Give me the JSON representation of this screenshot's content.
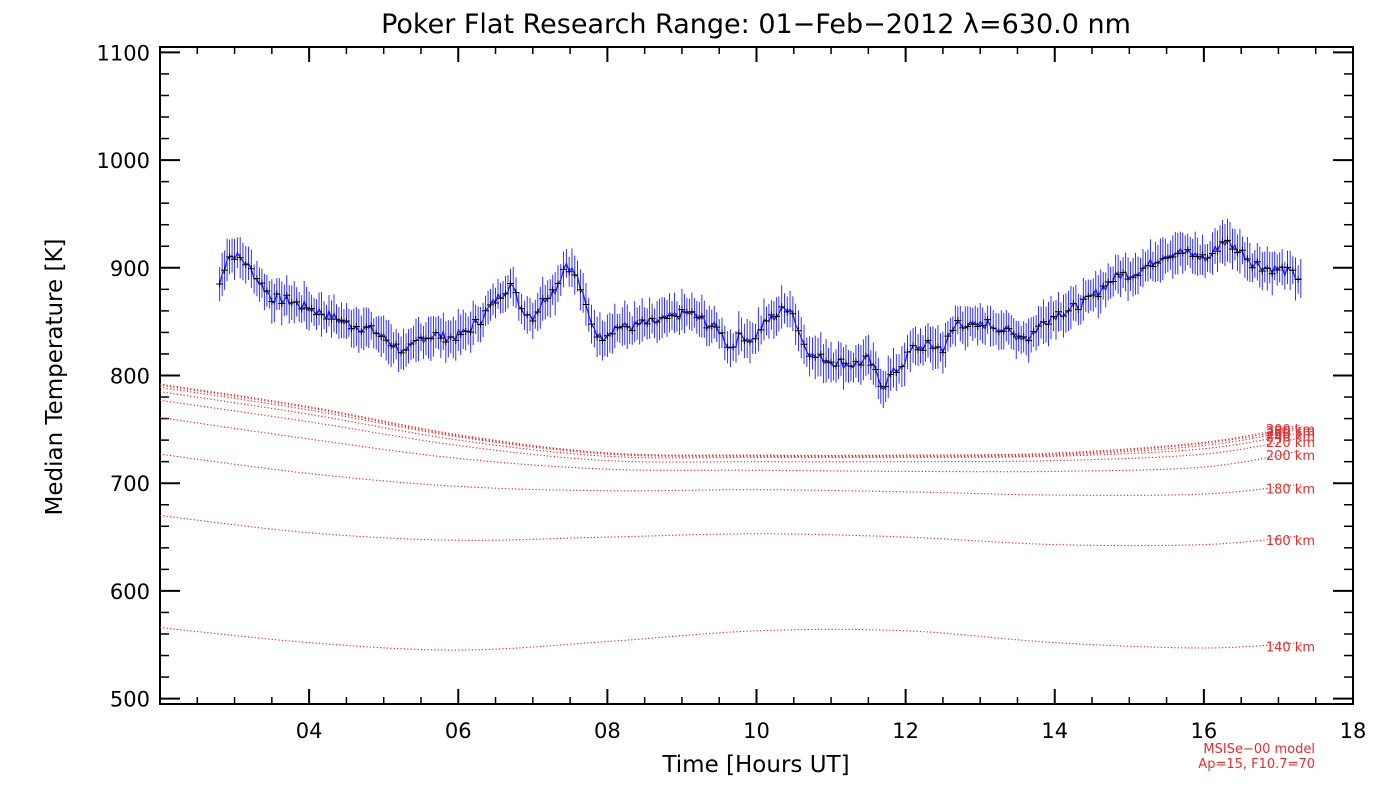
{
  "chart_data": {
    "type": "line",
    "title": "Poker Flat Research Range: 01−Feb−2012 λ=630.0 nm",
    "xlabel": "Time [Hours UT]",
    "ylabel": "Median Temperature [K]",
    "xlim": [
      2.0,
      18.0
    ],
    "ylim": [
      495,
      1105
    ],
    "x_ticks": [
      4,
      6,
      8,
      10,
      12,
      14,
      16,
      18
    ],
    "x_tick_labels": [
      "04",
      "06",
      "08",
      "10",
      "12",
      "14",
      "16",
      "18"
    ],
    "y_ticks": [
      500,
      600,
      700,
      800,
      900,
      1000,
      1100
    ],
    "y_tick_labels": [
      "500",
      "600",
      "700",
      "800",
      "900",
      "1000",
      "1100"
    ],
    "grid": false,
    "model_note": [
      "MSISe−00 model",
      "Ap=15, F10.7=70"
    ],
    "colors": {
      "observed": "#1a1aff",
      "markers": "#000000",
      "model": "#e02020"
    },
    "observed": {
      "error_bar_k": 16,
      "x": [
        2.8,
        2.9,
        3.0,
        3.15,
        3.3,
        3.5,
        3.7,
        3.9,
        4.1,
        4.3,
        4.5,
        4.7,
        4.9,
        5.1,
        5.3,
        5.5,
        5.7,
        5.9,
        6.1,
        6.3,
        6.5,
        6.7,
        6.85,
        7.0,
        7.2,
        7.3,
        7.45,
        7.6,
        7.75,
        7.9,
        8.1,
        8.3,
        8.5,
        8.7,
        8.9,
        9.1,
        9.3,
        9.5,
        9.65,
        9.8,
        9.95,
        10.1,
        10.3,
        10.45,
        10.6,
        10.75,
        10.9,
        11.1,
        11.3,
        11.5,
        11.7,
        11.8,
        11.95,
        12.1,
        12.3,
        12.5,
        12.7,
        12.9,
        13.1,
        13.25,
        13.45,
        13.65,
        13.85,
        14.05,
        14.25,
        14.45,
        14.65,
        14.85,
        15.05,
        15.25,
        15.45,
        15.65,
        15.85,
        16.05,
        16.25,
        16.45,
        16.65,
        16.85,
        17.05,
        17.3
      ],
      "y": [
        885,
        910,
        912,
        905,
        890,
        872,
        870,
        865,
        860,
        855,
        848,
        845,
        840,
        830,
        820,
        835,
        838,
        835,
        840,
        852,
        870,
        885,
        862,
        855,
        875,
        880,
        905,
        890,
        855,
        835,
        845,
        845,
        848,
        850,
        855,
        858,
        850,
        842,
        825,
        838,
        833,
        848,
        858,
        865,
        835,
        818,
        815,
        812,
        810,
        815,
        790,
        800,
        810,
        825,
        828,
        825,
        850,
        845,
        848,
        845,
        838,
        835,
        850,
        858,
        862,
        870,
        882,
        893,
        895,
        902,
        912,
        915,
        912,
        908,
        925,
        918,
        905,
        900,
        898,
        890
      ]
    },
    "model_series": [
      {
        "name": "140 km",
        "x": [
          2.0,
          4.0,
          6.0,
          8.0,
          10.0,
          12.0,
          14.0,
          16.0,
          17.3
        ],
        "y": [
          566,
          552,
          545,
          553,
          563,
          563,
          552,
          547,
          552
        ]
      },
      {
        "name": "160 km",
        "x": [
          2.0,
          4.0,
          6.0,
          8.0,
          10.0,
          12.0,
          14.0,
          16.0,
          17.3
        ],
        "y": [
          670,
          654,
          647,
          650,
          653,
          650,
          643,
          643,
          651
        ]
      },
      {
        "name": "180 km",
        "x": [
          2.0,
          4.0,
          6.0,
          8.0,
          10.0,
          12.0,
          14.0,
          16.0,
          17.3
        ],
        "y": [
          727,
          709,
          697,
          693,
          694,
          692,
          689,
          690,
          699
        ]
      },
      {
        "name": "200 km",
        "x": [
          2.0,
          4.0,
          6.0,
          8.0,
          10.0,
          12.0,
          14.0,
          16.0,
          17.3
        ],
        "y": [
          761,
          741,
          723,
          713,
          712,
          711,
          711,
          715,
          730
        ]
      },
      {
        "name": "220 km",
        "x": [
          2.0,
          4.0,
          6.0,
          8.0,
          10.0,
          12.0,
          14.0,
          16.0,
          17.3
        ],
        "y": [
          777,
          757,
          735,
          721,
          720,
          720,
          721,
          727,
          742
        ]
      },
      {
        "name": "240 km",
        "x": [
          2.0,
          4.0,
          6.0,
          8.0,
          10.0,
          12.0,
          14.0,
          16.0,
          17.3
        ],
        "y": [
          785,
          764,
          740,
          725,
          724,
          724,
          725,
          732,
          747
        ]
      },
      {
        "name": "260 km",
        "x": [
          2.0,
          4.0,
          6.0,
          8.0,
          10.0,
          12.0,
          14.0,
          16.0,
          17.3
        ],
        "y": [
          789,
          768,
          743,
          727,
          725,
          725,
          726,
          735,
          750
        ]
      },
      {
        "name": "280 km",
        "x": [
          2.0,
          4.0,
          6.0,
          8.0,
          10.0,
          12.0,
          14.0,
          16.0,
          17.3
        ],
        "y": [
          791,
          770,
          744,
          728,
          726,
          726,
          727,
          737,
          752
        ]
      },
      {
        "name": "300 km",
        "x": [
          2.0,
          4.0,
          6.0,
          8.0,
          10.0,
          12.0,
          14.0,
          16.0,
          17.3
        ],
        "y": [
          792,
          771,
          745,
          728,
          726,
          726,
          728,
          738,
          754
        ]
      }
    ]
  }
}
